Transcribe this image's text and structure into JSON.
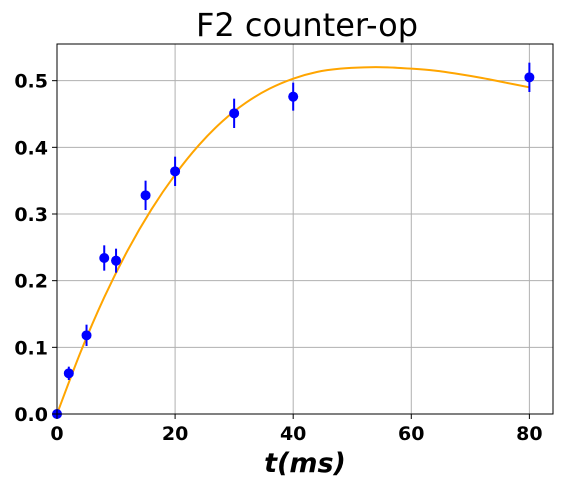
{
  "chart_data": {
    "type": "scatter",
    "title": "F2 counter-op",
    "xlabel": "t(ms)",
    "ylabel": "",
    "xlim": [
      0,
      84
    ],
    "ylim": [
      0,
      0.555
    ],
    "xticks": [
      0,
      20,
      40,
      60,
      80
    ],
    "yticks": [
      0.0,
      0.1,
      0.2,
      0.3,
      0.4,
      0.5
    ],
    "xtick_labels": [
      "0",
      "20",
      "40",
      "60",
      "80"
    ],
    "ytick_labels": [
      "0.0",
      "0.1",
      "0.2",
      "0.3",
      "0.4",
      "0.5"
    ],
    "grid": true,
    "legend": "none",
    "series": [
      {
        "kind": "points-with-errorbars",
        "color": "#0000ff",
        "x": [
          0,
          2,
          5,
          8,
          10,
          15,
          20,
          30,
          40,
          80
        ],
        "y": [
          0.0,
          0.061,
          0.118,
          0.234,
          0.23,
          0.328,
          0.364,
          0.451,
          0.476,
          0.505
        ],
        "yerr": [
          0.004,
          0.01,
          0.016,
          0.019,
          0.018,
          0.022,
          0.022,
          0.022,
          0.021,
          0.022
        ]
      },
      {
        "kind": "fit-line",
        "color": "#ffa500",
        "x": [
          0,
          4,
          8,
          12,
          16,
          20,
          24,
          28,
          32,
          36,
          40,
          44,
          48,
          52,
          56,
          60,
          64,
          68,
          72,
          76,
          80
        ],
        "y": [
          0.0,
          0.093,
          0.175,
          0.246,
          0.307,
          0.359,
          0.403,
          0.439,
          0.467,
          0.488,
          0.503,
          0.513,
          0.518,
          0.52,
          0.52,
          0.518,
          0.515,
          0.51,
          0.504,
          0.497,
          0.49
        ]
      }
    ]
  }
}
